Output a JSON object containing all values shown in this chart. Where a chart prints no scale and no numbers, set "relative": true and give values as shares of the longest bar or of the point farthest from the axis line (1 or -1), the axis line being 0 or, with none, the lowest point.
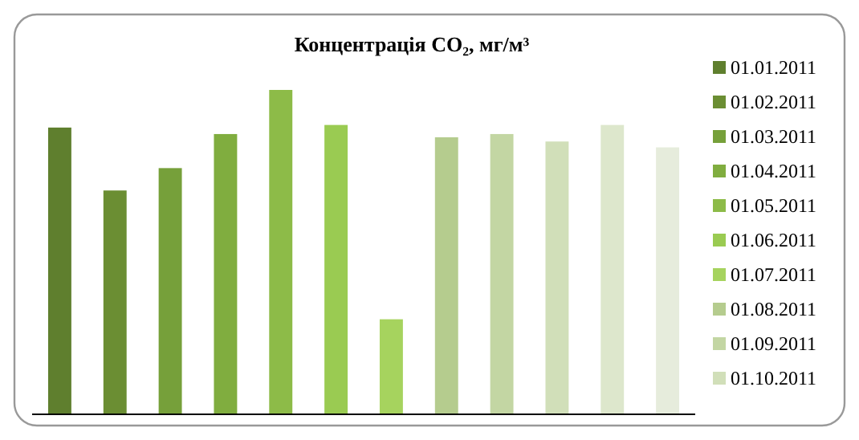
{
  "chart_data": {
    "type": "bar",
    "title": "Концентрація CO₂, мг/м³",
    "relative": true,
    "categories": [
      null,
      null,
      null,
      null,
      null,
      null,
      null,
      null,
      null,
      null,
      null,
      null
    ],
    "values": [
      0.884,
      0.69,
      0.759,
      0.864,
      1,
      0.892,
      0.293,
      0.854,
      0.864,
      0.841,
      0.892,
      0.823
    ],
    "colors": [
      "#5f7f2e",
      "#6b8e33",
      "#76a03a",
      "#80ad3f",
      "#8dbb48",
      "#9acb52",
      "#a6d35e",
      "#b5cc8e",
      "#c3d6a3",
      "#d1dfb9",
      "#dde7cc",
      "#e6ecdc"
    ],
    "annotations": [
      "01.01.2011",
      "01.02.2011",
      "01.03.2011",
      "01.04.2011",
      "01.05.2011",
      "01.06.2011",
      "01.07.2011",
      "01.08.2011",
      "01.09.2011",
      "01.10.2011"
    ]
  }
}
